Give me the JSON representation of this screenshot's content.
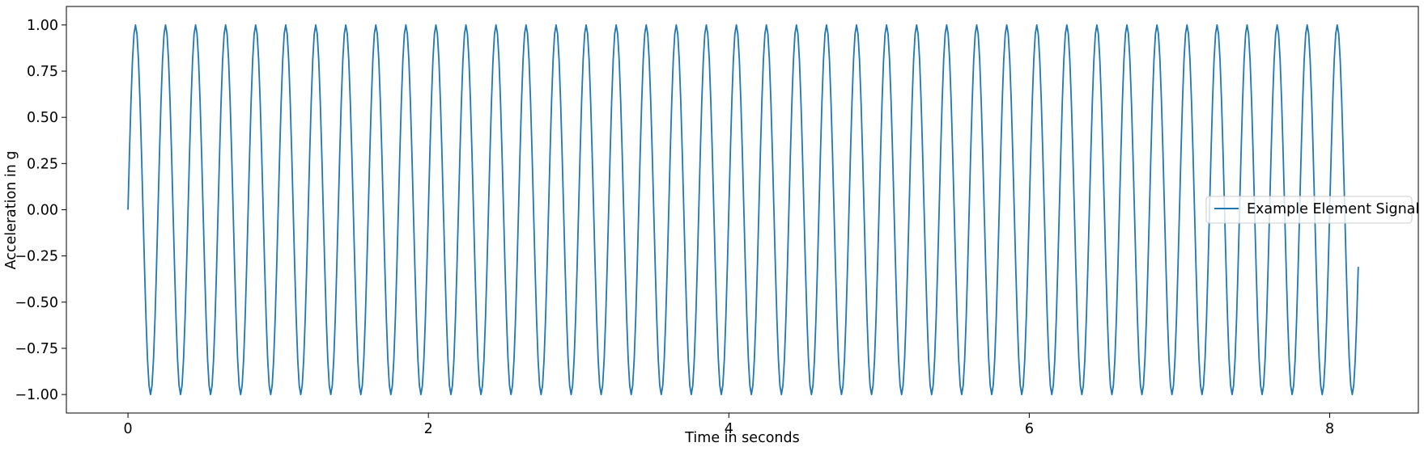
{
  "chart_data": {
    "type": "line",
    "title": "",
    "xlabel": "Time in seconds",
    "ylabel": "Acceleration in g",
    "xlim": [
      -0.41,
      8.59
    ],
    "ylim": [
      -1.1,
      1.1
    ],
    "xticks": [
      0,
      2,
      4,
      6,
      8
    ],
    "xtick_labels": [
      "0",
      "2",
      "4",
      "6",
      "8"
    ],
    "yticks": [
      1.0,
      0.75,
      0.5,
      0.25,
      0.0,
      -0.25,
      -0.5,
      -0.75,
      -1.0
    ],
    "ytick_labels": [
      "1.00",
      "0.75",
      "0.50",
      "0.25",
      "0.00",
      "−0.25",
      "−0.50",
      "−0.75",
      "−1.00"
    ],
    "grid": false,
    "legend_position": "center-right",
    "series": [
      {
        "name": "Example Element Signal",
        "color": "#1f77b4",
        "function": "sine",
        "amplitude": 1.0,
        "frequency_hz": 5.0,
        "x_start": 0.0,
        "x_end": 8.19,
        "sampling_rate_hz": 100
      }
    ]
  }
}
